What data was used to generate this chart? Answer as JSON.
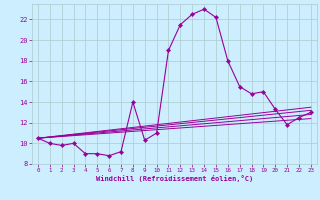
{
  "xlabel": "Windchill (Refroidissement éolien,°C)",
  "bg_color": "#cceeff",
  "grid_color": "#aacccc",
  "line_color": "#990099",
  "xlim": [
    -0.5,
    23.5
  ],
  "ylim": [
    8,
    23.5
  ],
  "xticks": [
    0,
    1,
    2,
    3,
    4,
    5,
    6,
    7,
    8,
    9,
    10,
    11,
    12,
    13,
    14,
    15,
    16,
    17,
    18,
    19,
    20,
    21,
    22,
    23
  ],
  "yticks": [
    8,
    10,
    12,
    14,
    16,
    18,
    20,
    22
  ],
  "main_series": {
    "x": [
      0,
      1,
      2,
      3,
      4,
      5,
      6,
      7,
      8,
      9,
      10,
      11,
      12,
      13,
      14,
      15,
      16,
      17,
      18,
      19,
      20,
      21,
      22,
      23
    ],
    "y": [
      10.5,
      10.0,
      9.8,
      10.0,
      9.0,
      9.0,
      8.8,
      9.2,
      14.0,
      10.3,
      11.0,
      19.0,
      21.5,
      22.5,
      23.0,
      22.2,
      18.0,
      15.5,
      14.8,
      15.0,
      13.3,
      11.8,
      12.5,
      13.0
    ]
  },
  "trend_lines": [
    {
      "x": [
        0,
        23
      ],
      "y": [
        10.5,
        13.5
      ]
    },
    {
      "x": [
        0,
        23
      ],
      "y": [
        10.5,
        13.2
      ]
    },
    {
      "x": [
        0,
        23
      ],
      "y": [
        10.5,
        12.8
      ]
    },
    {
      "x": [
        0,
        23
      ],
      "y": [
        10.5,
        12.4
      ]
    }
  ]
}
